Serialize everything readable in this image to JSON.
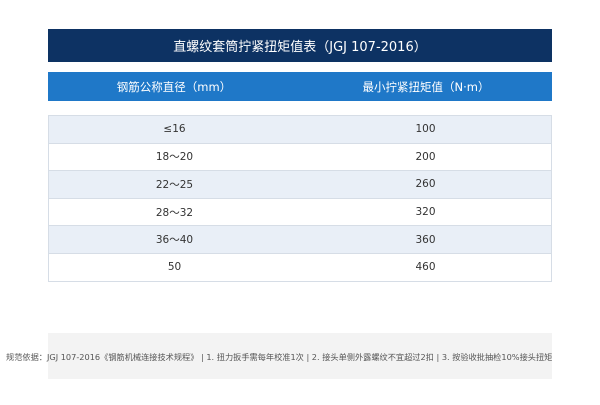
{
  "title": "直螺纹套筒拧紧扭矩值表（JGJ 107-2016）",
  "table": {
    "headers": [
      "钢筋公称直径（mm）",
      "最小拧紧扭矩值（N·m）"
    ],
    "rows": [
      {
        "diameter": "≤16",
        "torque": "100"
      },
      {
        "diameter": "18～20",
        "torque": "200"
      },
      {
        "diameter": "22～25",
        "torque": "260"
      },
      {
        "diameter": "28～32",
        "torque": "320"
      },
      {
        "diameter": "36～40",
        "torque": "360"
      },
      {
        "diameter": "50",
        "torque": "460"
      }
    ]
  },
  "footnote": "规范依据：JGJ 107-2016《钢筋机械连接技术规程》 | 1. 扭力扳手需每年校准1次 | 2. 接头单侧外露螺纹不宜超过2扣 | 3. 按验收批抽检10%接头扭矩"
}
